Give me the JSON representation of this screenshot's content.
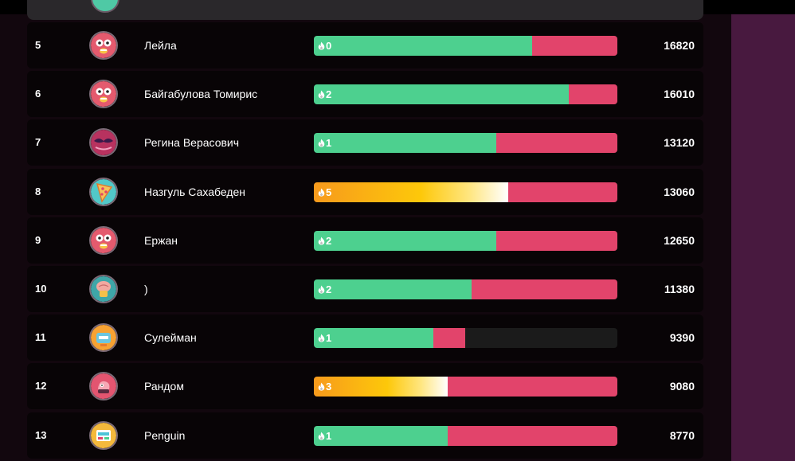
{
  "leaderboard": {
    "rows": [
      {
        "rank": "5",
        "name": "Лейла",
        "streak": "0",
        "score": "16820",
        "avatar_icon": "scared-face-avatar-icon",
        "avatar_bg": "#e45a6e",
        "correct_fraction": 0.72,
        "wrong_fraction": 0.28,
        "on_fire": false
      },
      {
        "rank": "6",
        "name": "Байгабулова Томирис",
        "streak": "2",
        "score": "16010",
        "avatar_icon": "scared-face-avatar-icon",
        "avatar_bg": "#e45a6e",
        "correct_fraction": 0.84,
        "wrong_fraction": 0.16,
        "on_fire": false
      },
      {
        "rank": "7",
        "name": "Регина Верасович",
        "streak": "1",
        "score": "13120",
        "avatar_icon": "mustache-avatar-icon",
        "avatar_bg": "#b8325f",
        "correct_fraction": 0.6,
        "wrong_fraction": 0.4,
        "on_fire": false
      },
      {
        "rank": "8",
        "name": "Назгуль Сахабеден",
        "streak": "5",
        "score": "13060",
        "avatar_icon": "pizza-avatar-icon",
        "avatar_bg": "#52c8c8",
        "correct_fraction": 0.64,
        "wrong_fraction": 0.36,
        "on_fire": true
      },
      {
        "rank": "9",
        "name": "Ержан",
        "streak": "2",
        "score": "12650",
        "avatar_icon": "scared-face-avatar-icon",
        "avatar_bg": "#e45a6e",
        "correct_fraction": 0.6,
        "wrong_fraction": 0.4,
        "on_fire": false
      },
      {
        "rank": "10",
        "name": ")",
        "streak": "2",
        "score": "11380",
        "avatar_icon": "brain-avatar-icon",
        "avatar_bg": "#3ea6a8",
        "correct_fraction": 0.52,
        "wrong_fraction": 0.48,
        "on_fire": false
      },
      {
        "rank": "11",
        "name": "Сулейман",
        "streak": "1",
        "score": "9390",
        "avatar_icon": "robot-avatar-icon",
        "avatar_bg": "#f7a233",
        "correct_fraction": 0.395,
        "wrong_fraction": 0.105,
        "on_fire": false
      },
      {
        "rank": "12",
        "name": "Рандом",
        "streak": "3",
        "score": "9080",
        "avatar_icon": "creature-avatar-icon",
        "avatar_bg": "#e35570",
        "correct_fraction": 0.44,
        "wrong_fraction": 0.56,
        "on_fire": true
      },
      {
        "rank": "13",
        "name": "Penguin",
        "streak": "1",
        "score": "8770",
        "avatar_icon": "gadget-avatar-icon",
        "avatar_bg": "#f4b93c",
        "correct_fraction": 0.44,
        "wrong_fraction": 0.56,
        "on_fire": false
      }
    ]
  },
  "colors": {
    "correct": "#4dd08f",
    "wrong": "#e2446b",
    "fire_start": "#f79a1c",
    "fire_mid": "#fdc80a",
    "empty": "#1b1b1b",
    "side_panel": "#48193f"
  }
}
